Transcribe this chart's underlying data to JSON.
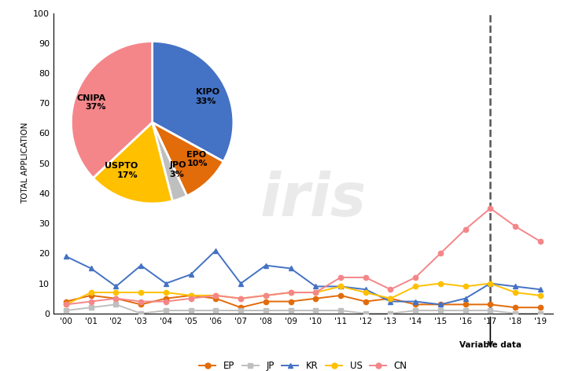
{
  "years": [
    "'00",
    "'01",
    "'02",
    "'03",
    "'04",
    "'05",
    "'06",
    "'07",
    "'08",
    "'09",
    "'10",
    "'11",
    "'12",
    "'13",
    "'14",
    "'15",
    "'16",
    "'17",
    "'18",
    "'19"
  ],
  "EP": [
    4,
    6,
    5,
    3,
    5,
    6,
    5,
    2,
    4,
    4,
    5,
    6,
    4,
    5,
    3,
    3,
    3,
    3,
    2,
    2
  ],
  "JP": [
    1,
    2,
    3,
    0,
    1,
    1,
    1,
    1,
    1,
    1,
    1,
    1,
    0,
    0,
    1,
    1,
    1,
    1,
    0,
    0
  ],
  "KR": [
    19,
    15,
    9,
    16,
    10,
    13,
    21,
    10,
    16,
    15,
    9,
    9,
    8,
    4,
    4,
    3,
    5,
    10,
    9,
    8
  ],
  "US": [
    3,
    7,
    7,
    7,
    7,
    6,
    6,
    5,
    6,
    7,
    7,
    9,
    7,
    5,
    9,
    10,
    9,
    10,
    7,
    6
  ],
  "CN": [
    3,
    4,
    5,
    4,
    4,
    5,
    6,
    5,
    6,
    7,
    7,
    12,
    12,
    8,
    12,
    20,
    28,
    35,
    29,
    24
  ],
  "pie_labels": [
    "KIPO\n33%",
    "EPO\n10%",
    "JPO\n3%",
    "USPTO\n17%",
    "CNIPA\n37%"
  ],
  "pie_values": [
    33,
    10,
    3,
    17,
    37
  ],
  "pie_colors": [
    "#4472C4",
    "#E26B0A",
    "#BFBFBF",
    "#FFC000",
    "#F4868A"
  ],
  "line_colors": {
    "EP": "#E26B0A",
    "JP": "#BFBFBF",
    "KR": "#4472C4",
    "US": "#FFC000",
    "CN": "#F4868A"
  },
  "series_order": [
    "EP",
    "JP",
    "KR",
    "US",
    "CN"
  ],
  "marker_styles": {
    "EP": "o",
    "JP": "s",
    "KR": "^",
    "US": "o",
    "CN": "o"
  },
  "ylabel": "TOTAL APPLICATION",
  "ylim": [
    0,
    100
  ],
  "yticks": [
    0,
    10,
    20,
    30,
    40,
    50,
    60,
    70,
    80,
    90,
    100
  ],
  "dashed_line_x": 17,
  "variable_data_label": "Variable data",
  "watermark": "iris",
  "bg_color": "#FFFFFF"
}
